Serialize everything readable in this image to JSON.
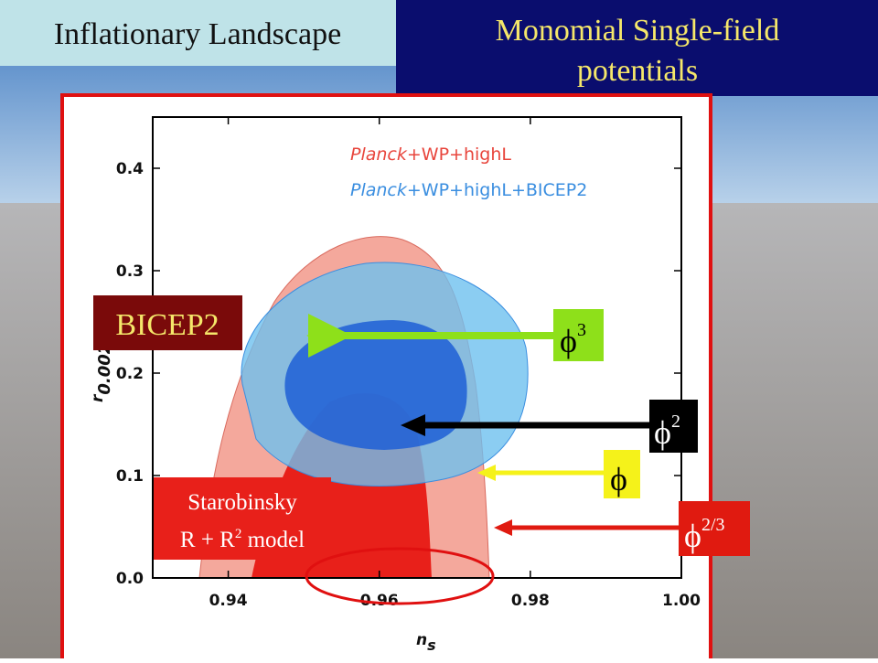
{
  "header": {
    "left_title": "Inflationary Landscape",
    "right_title_lines": [
      "Monomial Single-field",
      "potentials"
    ]
  },
  "chart_data": {
    "type": "contour",
    "x_label": {
      "base": "n",
      "sub": "s"
    },
    "y_label": {
      "base": "r",
      "sub": "0.002"
    },
    "xlim": [
      0.93,
      1.0
    ],
    "ylim": [
      0,
      0.45
    ],
    "xticks": [
      0.94,
      0.96,
      0.98,
      {
        "value": 1.0,
        "label": "1.00"
      }
    ],
    "yticks": [
      {
        "value": 0,
        "label": "0.0"
      },
      0.1,
      0.2,
      0.3,
      0.4
    ],
    "legend": [
      {
        "italic": "Planck",
        "rest": "+WP+highL",
        "color": "#e8453c"
      },
      {
        "italic": "Planck",
        "rest": "+WP+highL+BICEP2",
        "color": "#3a8ee0"
      }
    ]
  },
  "annotations": {
    "bicep2": "BICEP2",
    "starobinsky": {
      "line1": "Starobinsky",
      "line2_base": "R + R",
      "line2_sup": "2",
      "line2_rest": " model"
    },
    "phi3": {
      "base": "ϕ",
      "sup": "3"
    },
    "phi2": {
      "base": "ϕ",
      "sup": "2"
    },
    "phi1": {
      "base": "ϕ"
    },
    "phi23": {
      "base": "ϕ",
      "sup": "2/3"
    }
  }
}
